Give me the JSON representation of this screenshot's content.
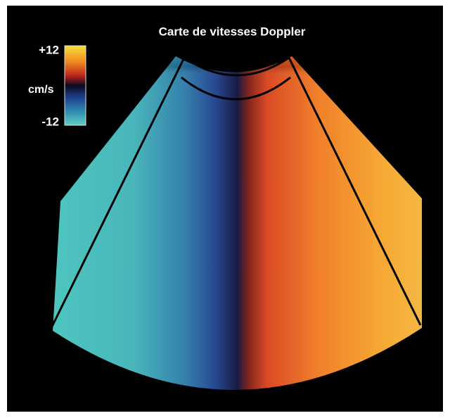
{
  "title": "Carte de vitesses Doppler",
  "colorbar": {
    "max_label": "+12",
    "unit": "cm/s",
    "min_label": "-12"
  }
}
